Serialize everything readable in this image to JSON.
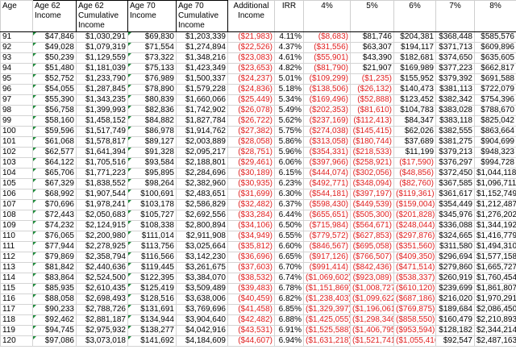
{
  "headers": [
    "Age",
    "Age 62 Income",
    "Age 62 Cumulative Income",
    "Age 70 Income",
    "Age 70 Cumulative Income",
    "Additional Income",
    "IRR",
    "4%",
    "5%",
    "6%",
    "7%",
    "8%"
  ],
  "rows": [
    [
      "91",
      "$47,846",
      "$1,030,291",
      "$69,830",
      "$1,203,339",
      "($21,983)",
      "4.11%",
      "($8,683)",
      "$81,746",
      "$204,381",
      "$368,448",
      "$585,576"
    ],
    [
      "92",
      "$49,028",
      "$1,079,319",
      "$71,554",
      "$1,274,894",
      "($22,526)",
      "4.37%",
      "($31,556)",
      "$63,307",
      "$194,117",
      "$371,713",
      "$609,896"
    ],
    [
      "93",
      "$50,239",
      "$1,129,559",
      "$73,322",
      "$1,348,216",
      "($23,083)",
      "4.61%",
      "($55,901)",
      "$43,390",
      "$182,681",
      "$374,650",
      "$635,605"
    ],
    [
      "94",
      "$51,480",
      "$1,181,039",
      "$75,133",
      "$1,423,349",
      "($23,653)",
      "4.82%",
      "($81,790)",
      "$21,907",
      "$169,989",
      "$377,223",
      "$662,817"
    ],
    [
      "95",
      "$52,752",
      "$1,233,790",
      "$76,989",
      "$1,500,337",
      "($24,237)",
      "5.01%",
      "($109,299)",
      "($1,235)",
      "$155,952",
      "$379,392",
      "$691,588"
    ],
    [
      "96",
      "$54,055",
      "$1,287,845",
      "$78,890",
      "$1,579,228",
      "($24,836)",
      "5.18%",
      "($138,506)",
      "($26,132)",
      "$140,473",
      "$381,113",
      "$722,079"
    ],
    [
      "97",
      "$55,390",
      "$1,343,235",
      "$80,839",
      "$1,660,066",
      "($25,449)",
      "5.34%",
      "($169,496)",
      "($52,888)",
      "$123,452",
      "$382,342",
      "$754,396"
    ],
    [
      "98",
      "$56,758",
      "$1,399,993",
      "$82,836",
      "$1,742,902",
      "($26,078)",
      "5.49%",
      "($202,353)",
      "($81,610)",
      "$104,783",
      "$383,028",
      "$788,670"
    ],
    [
      "99",
      "$58,160",
      "$1,458,152",
      "$84,882",
      "$1,827,784",
      "($26,722)",
      "5.62%",
      "($237,169)",
      "($112,413)",
      "$84,347",
      "$383,118",
      "$825,042"
    ],
    [
      "100",
      "$59,596",
      "$1,517,749",
      "$86,978",
      "$1,914,762",
      "($27,382)",
      "5.75%",
      "($274,038)",
      "($145,415)",
      "$62,026",
      "$382,555",
      "$863,664"
    ],
    [
      "101",
      "$61,068",
      "$1,578,817",
      "$89,127",
      "$2,003,889",
      "($28,058)",
      "5.86%",
      "($313,058)",
      "($180,744)",
      "$37,689",
      "$381,275",
      "$904,699"
    ],
    [
      "102",
      "$62,577",
      "$1,641,394",
      "$91,328",
      "$2,095,217",
      "($28,751)",
      "5.96%",
      "($354,331)",
      "($218,533)",
      "$11,199",
      "$379,213",
      "$948,323"
    ],
    [
      "103",
      "$64,122",
      "$1,705,516",
      "$93,584",
      "$2,188,801",
      "($29,461)",
      "6.06%",
      "($397,966)",
      "($258,921)",
      "($17,590)",
      "$376,297",
      "$994,728"
    ],
    [
      "104",
      "$65,706",
      "$1,771,223",
      "$95,895",
      "$2,284,696",
      "($30,189)",
      "6.15%",
      "($444,074)",
      "($302,056)",
      "($48,856)",
      "$372,450",
      "$1,044,118"
    ],
    [
      "105",
      "$67,329",
      "$1,838,552",
      "$98,264",
      "$2,382,960",
      "($30,935)",
      "6.23%",
      "($492,771)",
      "($348,094)",
      "($82,760)",
      "$367,585",
      "$1,096,711"
    ],
    [
      "106",
      "$68,992",
      "$1,907,544",
      "$100,691",
      "$2,483,651",
      "($31,699)",
      "6.30%",
      "($544,181)",
      "($397,197)",
      "($119,361)",
      "$361,617",
      "$1,152,749"
    ],
    [
      "107",
      "$70,696",
      "$1,978,241",
      "$103,178",
      "$2,586,829",
      "($32,482)",
      "6.37%",
      "($598,430)",
      "($449,539)",
      "($159,004)",
      "$354,449",
      "$1,212,487"
    ],
    [
      "108",
      "$72,443",
      "$2,050,683",
      "$105,727",
      "$2,692,556",
      "($33,284)",
      "6.44%",
      "($655,651)",
      "($505,300)",
      "($201,828)",
      "$345,976",
      "$1,276,202"
    ],
    [
      "109",
      "$74,232",
      "$2,124,915",
      "$108,338",
      "$2,800,894",
      "($34,106)",
      "6.50%",
      "($715,984)",
      "($564,671)",
      "($248,044)",
      "$336,088",
      "$1,344,192"
    ],
    [
      "110",
      "$76,065",
      "$2,200,980",
      "$111,014",
      "$2,911,908",
      "($34,949)",
      "6.55%",
      "($779,572)",
      "($627,853)",
      "($297,876)",
      "$324,665",
      "$1,416,779"
    ],
    [
      "111",
      "$77,944",
      "$2,278,925",
      "$113,756",
      "$3,025,664",
      "($35,812)",
      "6.60%",
      "($846,567)",
      "($695,058)",
      "($351,560)",
      "$311,580",
      "$1,494,310"
    ],
    [
      "112",
      "$79,869",
      "$2,358,794",
      "$116,566",
      "$3,142,230",
      "($36,696)",
      "6.65%",
      "($917,126)",
      "($766,507)",
      "($409,350)",
      "$296,694",
      "$1,577,158"
    ],
    [
      "113",
      "$81,842",
      "$2,440,636",
      "$119,445",
      "$3,261,675",
      "($37,603)",
      "6.70%",
      "($991,414)",
      "($842,436)",
      "($471,514)",
      "$279,860",
      "$1,665,727"
    ],
    [
      "114",
      "$83,864",
      "$2,524,500",
      "$122,395",
      "$3,384,070",
      "($38,532)",
      "6.74%",
      "($1,069,602)",
      "($923,089)",
      "($538,337)",
      "$260,919",
      "$1,760,454"
    ],
    [
      "115",
      "$85,935",
      "$2,610,435",
      "$125,419",
      "$3,509,489",
      "($39,483)",
      "6.78%",
      "($1,151,869)",
      "($1,008,727)",
      "($610,120)",
      "$239,699",
      "$1,861,807"
    ],
    [
      "116",
      "$88,058",
      "$2,698,493",
      "$128,516",
      "$3,638,006",
      "($40,459)",
      "6.82%",
      "($1,238,403)",
      "($1,099,622)",
      "($687,186)",
      "$216,020",
      "$1,970,291"
    ],
    [
      "117",
      "$90,233",
      "$2,788,726",
      "$131,691",
      "$3,769,696",
      "($41,458)",
      "6.85%",
      "($1,329,397)",
      "($1,196,061)",
      "($769,875)",
      "$189,684",
      "$2,086,450"
    ],
    [
      "118",
      "$92,462",
      "$2,881,187",
      "$134,944",
      "$3,904,640",
      "($42,482)",
      "6.88%",
      "($1,425,055)",
      "($1,298,346)",
      "($858,550)",
      "$160,479",
      "$2,210,893"
    ],
    [
      "119",
      "$94,745",
      "$2,975,932",
      "$138,277",
      "$4,042,916",
      "($43,531)",
      "6.91%",
      "($1,525,588)",
      "($1,406,795)",
      "($953,594)",
      "$128,182",
      "$2,344,214"
    ],
    [
      "120",
      "$97,086",
      "$3,073,018",
      "$141,692",
      "$4,184,609",
      "($44,607)",
      "6.94%",
      "($1,631,218)",
      "($1,521,741)",
      "($1,055,416)",
      "$92,547",
      "$2,487,163"
    ]
  ]
}
